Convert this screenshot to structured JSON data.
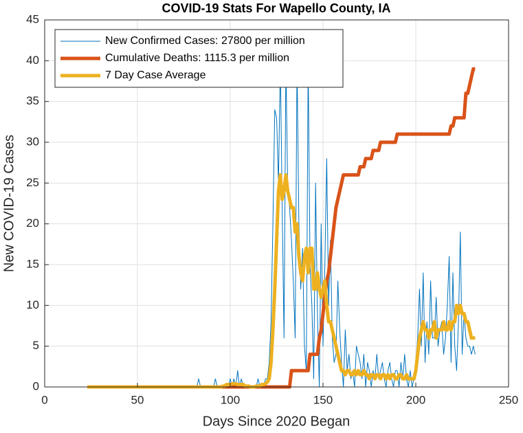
{
  "chart_data": {
    "type": "line",
    "title": "COVID-19 Stats For Wapello County, IA",
    "xlabel": "Days Since 2020 Began",
    "ylabel": "New COVID-19 Cases",
    "xlim": [
      0,
      250
    ],
    "xticks": [
      0,
      50,
      100,
      150,
      200,
      250
    ],
    "ylim": [
      0,
      45
    ],
    "yticks": [
      0,
      5,
      10,
      15,
      20,
      25,
      30,
      35,
      40,
      45
    ],
    "grid": true,
    "legend": "upper left",
    "x": [
      23,
      24,
      25,
      26,
      27,
      28,
      29,
      30,
      31,
      32,
      33,
      34,
      35,
      36,
      37,
      38,
      39,
      40,
      41,
      42,
      43,
      44,
      45,
      46,
      47,
      48,
      49,
      50,
      51,
      52,
      53,
      54,
      55,
      56,
      57,
      58,
      59,
      60,
      61,
      62,
      63,
      64,
      65,
      66,
      67,
      68,
      69,
      70,
      71,
      72,
      73,
      74,
      75,
      76,
      77,
      78,
      79,
      80,
      81,
      82,
      83,
      84,
      85,
      86,
      87,
      88,
      89,
      90,
      91,
      92,
      93,
      94,
      95,
      96,
      97,
      98,
      99,
      100,
      101,
      102,
      103,
      104,
      105,
      106,
      107,
      108,
      109,
      110,
      111,
      112,
      113,
      114,
      115,
      116,
      117,
      118,
      119,
      120,
      121,
      122,
      123,
      124,
      125,
      126,
      127,
      128,
      129,
      130,
      131,
      132,
      133,
      134,
      135,
      136,
      137,
      138,
      139,
      140,
      141,
      142,
      143,
      144,
      145,
      146,
      147,
      148,
      149,
      150,
      151,
      152,
      153,
      154,
      155,
      156,
      157,
      158,
      159,
      160,
      161,
      162,
      163,
      164,
      165,
      166,
      167,
      168,
      169,
      170,
      171,
      172,
      173,
      174,
      175,
      176,
      177,
      178,
      179,
      180,
      181,
      182,
      183,
      184,
      185,
      186,
      187,
      188,
      189,
      190,
      191,
      192,
      193,
      194,
      195,
      196,
      197,
      198,
      199,
      200,
      201,
      202,
      203,
      204,
      205,
      206,
      207,
      208,
      209,
      210,
      211,
      212,
      213,
      214,
      215,
      216,
      217,
      218,
      219,
      220,
      221,
      222,
      223,
      224,
      225,
      226,
      227,
      228,
      229,
      230,
      231,
      232
    ],
    "series": [
      {
        "name": "New Confirmed Cases: 27800 per million",
        "color": "#0072bd",
        "width": 1,
        "values": [
          0,
          0,
          0,
          0,
          0,
          0,
          0,
          0,
          0,
          0,
          0,
          0,
          0,
          0,
          0,
          0,
          0,
          0,
          0,
          0,
          0,
          0,
          0,
          0,
          0,
          0,
          0,
          0,
          0,
          0,
          0,
          0,
          0,
          0,
          0,
          0,
          0,
          0,
          0,
          0,
          0,
          0,
          0,
          0,
          0,
          0,
          0,
          0,
          0,
          0,
          0,
          0,
          0,
          0,
          0,
          0,
          0,
          0,
          0,
          0,
          1,
          0,
          0,
          0,
          0,
          0,
          0,
          0,
          0,
          1,
          0,
          0,
          0,
          0,
          0,
          0,
          0,
          1,
          0,
          1,
          0,
          2,
          0,
          1,
          0,
          0,
          0,
          0,
          0,
          0,
          0,
          0,
          1,
          0,
          0,
          0,
          1,
          1,
          3,
          8,
          20,
          34,
          33,
          25,
          40,
          22,
          6,
          40,
          24,
          22,
          18,
          13,
          6,
          40,
          20,
          12,
          17,
          5,
          2,
          40,
          15,
          10,
          1,
          25,
          9,
          0,
          20,
          5,
          15,
          28,
          10,
          18,
          6,
          3,
          4,
          13,
          7,
          3,
          0,
          7,
          2,
          4,
          1,
          2,
          0,
          5,
          4,
          3,
          1,
          4,
          0,
          3,
          2,
          0,
          2,
          1,
          4,
          1,
          2,
          3,
          1,
          0,
          2,
          3,
          1,
          0,
          2,
          2,
          0,
          3,
          1,
          4,
          1,
          0,
          2,
          0,
          1,
          3,
          6,
          12,
          5,
          14,
          3,
          8,
          4,
          13,
          6,
          6,
          11,
          5,
          7,
          8,
          4,
          6,
          10,
          16,
          3,
          14,
          5,
          2,
          8,
          19,
          4,
          9,
          6,
          5,
          5,
          4,
          5,
          4
        ]
      },
      {
        "name": "Cumulative Deaths: 1115.3 per million",
        "color": "#d95319",
        "width": 5,
        "values": [
          0,
          0,
          0,
          0,
          0,
          0,
          0,
          0,
          0,
          0,
          0,
          0,
          0,
          0,
          0,
          0,
          0,
          0,
          0,
          0,
          0,
          0,
          0,
          0,
          0,
          0,
          0,
          0,
          0,
          0,
          0,
          0,
          0,
          0,
          0,
          0,
          0,
          0,
          0,
          0,
          0,
          0,
          0,
          0,
          0,
          0,
          0,
          0,
          0,
          0,
          0,
          0,
          0,
          0,
          0,
          0,
          0,
          0,
          0,
          0,
          0,
          0,
          0,
          0,
          0,
          0,
          0,
          0,
          0,
          0,
          0,
          0,
          0,
          0,
          0,
          0,
          0,
          0,
          0,
          0,
          0,
          0,
          0,
          0,
          0,
          0,
          0,
          0,
          0,
          0,
          0,
          0,
          0,
          0,
          0,
          0,
          0,
          0,
          0,
          0,
          0,
          0,
          0,
          0,
          0,
          0,
          0,
          0,
          0,
          0,
          2,
          2,
          2,
          2,
          2,
          2,
          2,
          2,
          2,
          2,
          4,
          4,
          4,
          4,
          4,
          6,
          7,
          9,
          11,
          13,
          14,
          16,
          18,
          20,
          22,
          23,
          24,
          25,
          26,
          26,
          26,
          26,
          26,
          26,
          26,
          26,
          26,
          27,
          27,
          27,
          28,
          28,
          28,
          28,
          29,
          29,
          29,
          29,
          30,
          30,
          30,
          30,
          30,
          30,
          30,
          30,
          30,
          31,
          31,
          31,
          31,
          31,
          31,
          31,
          31,
          31,
          31,
          31,
          31,
          31,
          31,
          31,
          31,
          31,
          31,
          31,
          31,
          31,
          31,
          31,
          31,
          31,
          31,
          31,
          31,
          31,
          32,
          32,
          33,
          33,
          33,
          33,
          33,
          33,
          36,
          36,
          37,
          38,
          39,
          39
        ]
      },
      {
        "name": "7 Day Case Average",
        "color": "#edb120",
        "width": 5,
        "values": [
          0,
          0,
          0,
          0,
          0,
          0,
          0,
          0,
          0,
          0,
          0,
          0,
          0,
          0,
          0,
          0,
          0,
          0,
          0,
          0,
          0,
          0,
          0,
          0,
          0,
          0,
          0,
          0,
          0,
          0,
          0,
          0,
          0,
          0,
          0,
          0,
          0,
          0,
          0,
          0,
          0,
          0,
          0,
          0,
          0,
          0,
          0,
          0,
          0,
          0,
          0,
          0,
          0,
          0,
          0,
          0,
          0,
          0,
          0,
          0,
          0,
          0,
          0,
          0,
          0,
          0,
          0,
          0,
          0,
          0,
          0,
          0,
          0,
          0.1,
          0.1,
          0.3,
          0.3,
          0.3,
          0.4,
          0.4,
          0.4,
          0.3,
          0.3,
          0.3,
          0.3,
          0.1,
          0.1,
          0.1,
          0,
          0,
          0,
          0.1,
          0.1,
          0.1,
          0.3,
          0.3,
          0.4,
          0.6,
          1,
          3,
          7,
          12,
          18,
          24,
          26,
          23,
          24,
          26,
          24,
          23,
          22,
          22,
          19,
          20,
          16,
          14,
          13,
          16,
          17,
          14,
          17,
          17,
          12,
          12,
          14,
          12,
          11,
          12,
          13,
          10,
          8,
          8,
          7,
          6,
          5,
          4,
          3,
          2,
          2,
          1.5,
          2,
          2,
          1.5,
          1.5,
          2,
          1.5,
          2,
          1.5,
          1.5,
          2,
          1.5,
          1.5,
          1,
          1.5,
          1.5,
          1,
          1.5,
          1.5,
          1,
          1.5,
          1.5,
          1,
          1.5,
          1,
          1.5,
          1.5,
          1,
          1,
          1.5,
          1.5,
          1,
          1,
          1.5,
          1,
          1,
          1,
          1,
          2,
          4,
          6,
          7,
          8,
          7,
          7,
          6,
          7,
          7,
          8,
          6,
          7,
          7,
          7,
          8,
          7,
          7,
          8,
          7,
          8,
          8,
          10,
          9,
          10,
          9,
          9,
          8,
          8,
          7,
          6,
          6,
          6
        ]
      }
    ]
  }
}
